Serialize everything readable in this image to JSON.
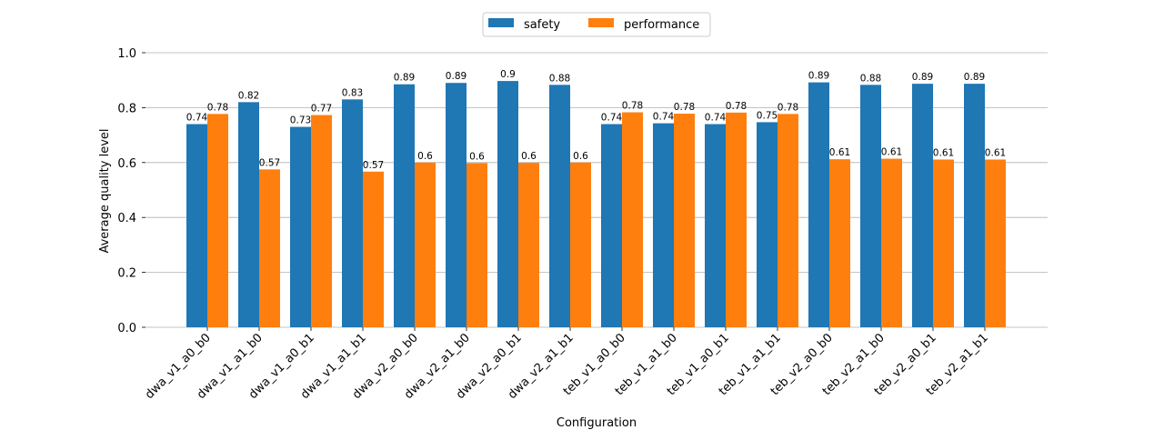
{
  "chart_data": {
    "type": "bar",
    "title": "",
    "xlabel": "Configuration",
    "ylabel": "Average quality level",
    "ylim": [
      0,
      1.0
    ],
    "yticks": [
      "0.0",
      "0.2",
      "0.4",
      "0.6",
      "0.8",
      "1.0"
    ],
    "grid": "horizontal",
    "legend_position": "top-center",
    "categories": [
      "dwa_v1_a0_b0",
      "dwa_v1_a1_b0",
      "dwa_v1_a0_b1",
      "dwa_v1_a1_b1",
      "dwa_v2_a0_b0",
      "dwa_v2_a1_b0",
      "dwa_v2_a0_b1",
      "dwa_v2_a1_b1",
      "teb_v1_a0_b0",
      "teb_v1_a1_b0",
      "teb_v1_a0_b1",
      "teb_v1_a1_b1",
      "teb_v2_a0_b0",
      "teb_v2_a1_b0",
      "teb_v2_a0_b1",
      "teb_v2_a1_b1"
    ],
    "series": [
      {
        "name": "safety",
        "color": "#1f77b4",
        "values": [
          0.74,
          0.82,
          0.73,
          0.83,
          0.885,
          0.89,
          0.897,
          0.883,
          0.74,
          0.743,
          0.74,
          0.747,
          0.892,
          0.883,
          0.887,
          0.887
        ],
        "labels": [
          "0.74",
          "0.82",
          "0.73",
          "0.83",
          "0.89",
          "0.89",
          "0.9",
          "0.88",
          "0.74",
          "0.74",
          "0.74",
          "0.75",
          "0.89",
          "0.88",
          "0.89",
          "0.89"
        ]
      },
      {
        "name": "performance",
        "color": "#ff7f0e",
        "values": [
          0.777,
          0.575,
          0.773,
          0.567,
          0.6,
          0.598,
          0.599,
          0.6,
          0.783,
          0.778,
          0.782,
          0.777,
          0.612,
          0.614,
          0.611,
          0.611
        ],
        "labels": [
          "0.78",
          "0.57",
          "0.77",
          "0.57",
          "0.6",
          "0.6",
          "0.6",
          "0.6",
          "0.78",
          "0.78",
          "0.78",
          "0.78",
          "0.61",
          "0.61",
          "0.61",
          "0.61"
        ]
      }
    ]
  }
}
